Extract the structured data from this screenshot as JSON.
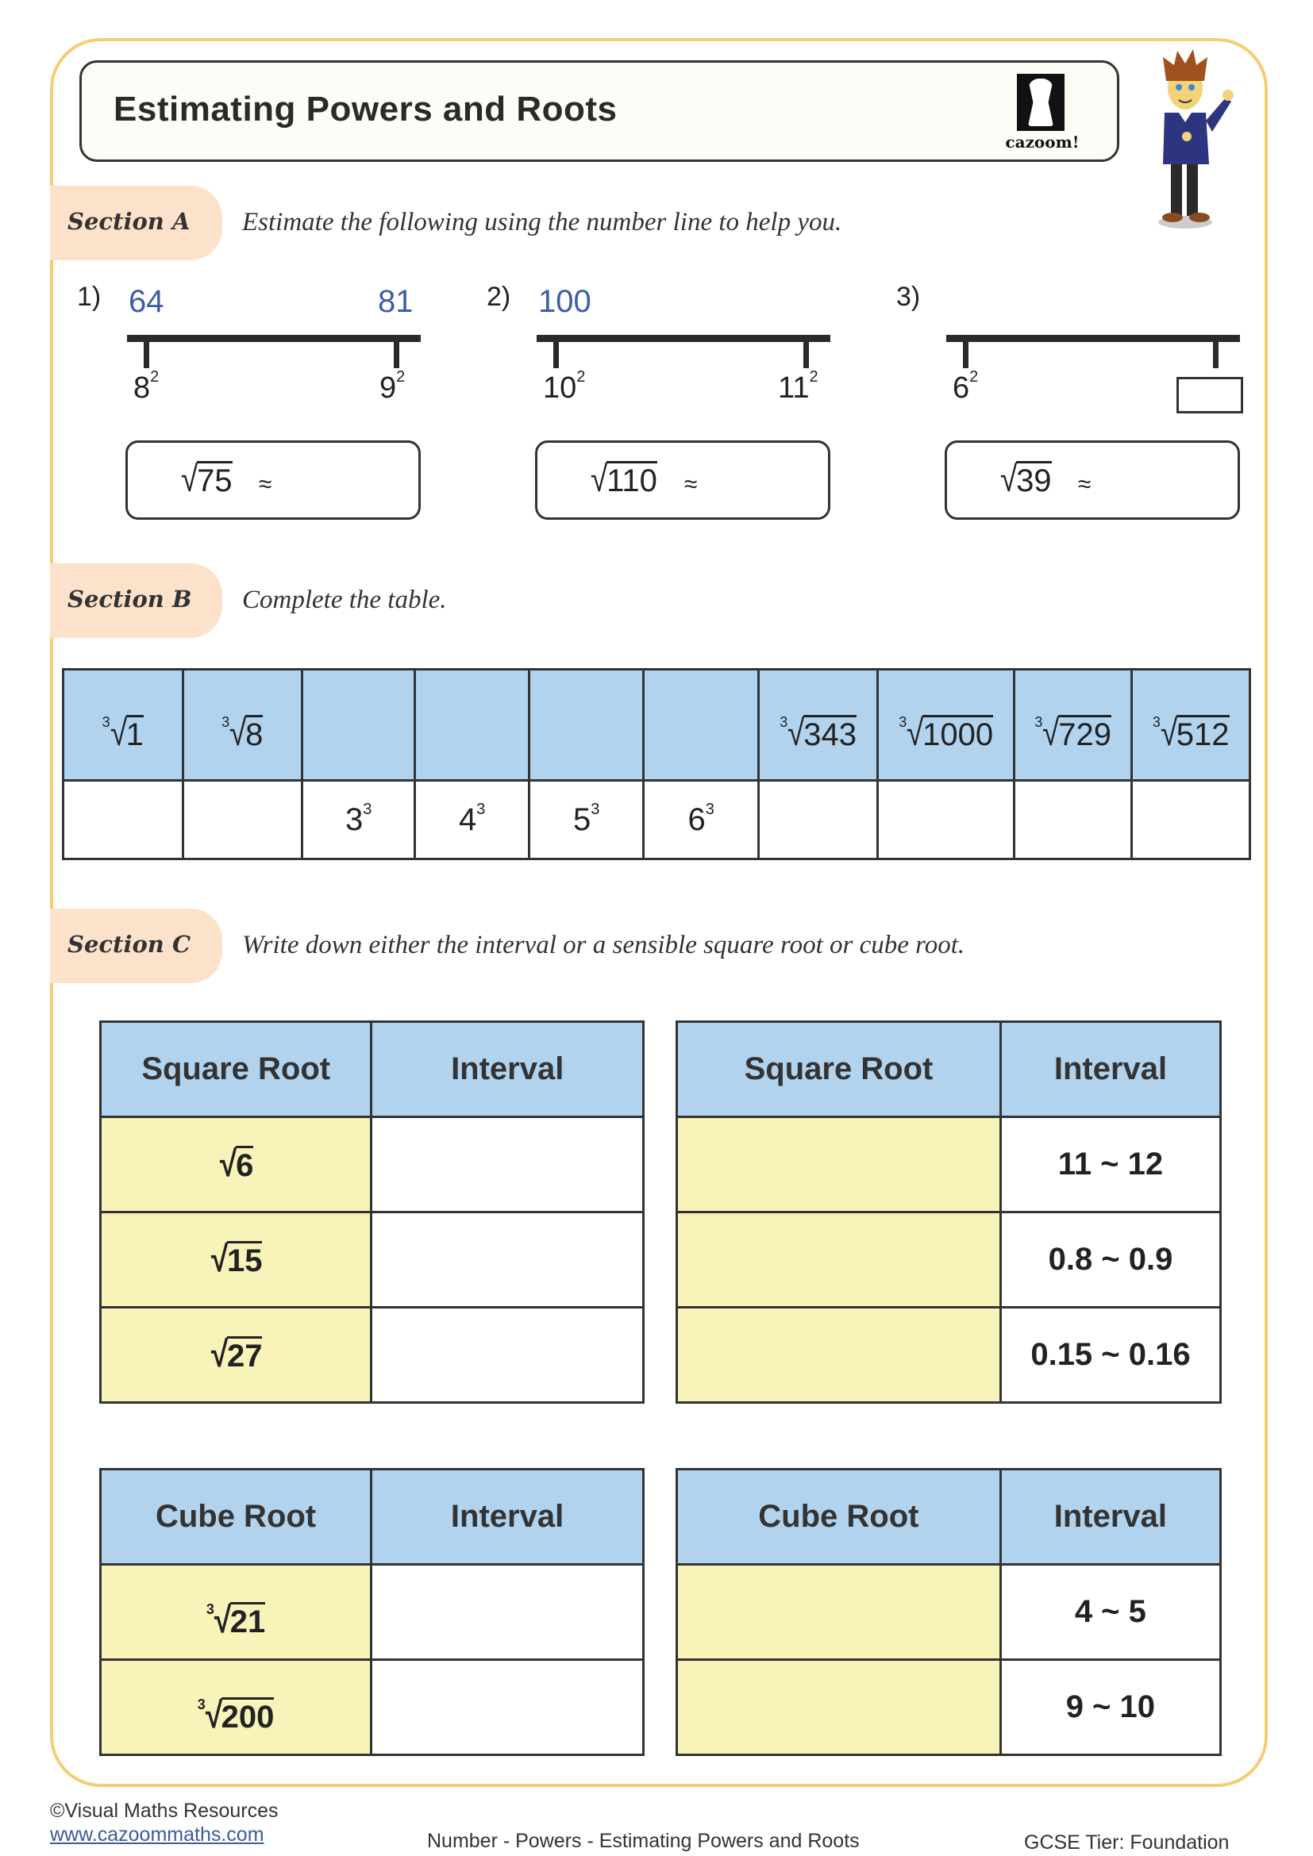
{
  "title": "Estimating Powers and Roots",
  "logo_text": "cazoom!",
  "colors": {
    "border": "#f6cc73",
    "section_pill": "#fde2cb",
    "blue_text": "#3d5ca8",
    "header_blue": "#b1d3ee",
    "cell_yellow": "#f8f3b9"
  },
  "sectionA": {
    "label": "Section A",
    "instruction": "Estimate the following using the number line to help you.",
    "approx_symbol": "≈",
    "problems": [
      {
        "number": "1)",
        "low_value": "64",
        "high_value": "81",
        "low_base": "8",
        "low_exp": "2",
        "high_base": "9",
        "high_exp": "2",
        "radicand": "75"
      },
      {
        "number": "2)",
        "low_value": "100",
        "high_value": "",
        "low_base": "10",
        "low_exp": "2",
        "high_base": "11",
        "high_exp": "2",
        "radicand": "110"
      },
      {
        "number": "3)",
        "low_value": "",
        "high_value": "",
        "low_base": "6",
        "low_exp": "2",
        "high_base": "",
        "high_exp": "",
        "radicand": "39"
      }
    ]
  },
  "sectionB": {
    "label": "Section B",
    "instruction": "Complete the table.",
    "top_row": [
      {
        "index": "3",
        "radicand": "1"
      },
      {
        "index": "3",
        "radicand": "8"
      },
      null,
      null,
      null,
      null,
      {
        "index": "3",
        "radicand": "343"
      },
      {
        "index": "3",
        "radicand": "1000"
      },
      {
        "index": "3",
        "radicand": "729"
      },
      {
        "index": "3",
        "radicand": "512"
      }
    ],
    "bottom_row": [
      null,
      null,
      {
        "base": "3",
        "exp": "3"
      },
      {
        "base": "4",
        "exp": "3"
      },
      {
        "base": "5",
        "exp": "3"
      },
      {
        "base": "6",
        "exp": "3"
      },
      null,
      null,
      null,
      null
    ]
  },
  "sectionC": {
    "label": "Section C",
    "instruction": "Write down either the interval or a sensible square root or cube root.",
    "tables": [
      {
        "headers": [
          "Square Root",
          "Interval"
        ],
        "rows": [
          [
            {
              "index": "",
              "radicand": "6"
            },
            ""
          ],
          [
            {
              "index": "",
              "radicand": "15"
            },
            ""
          ],
          [
            {
              "index": "",
              "radicand": "27"
            },
            ""
          ]
        ]
      },
      {
        "headers": [
          "Square Root",
          "Interval"
        ],
        "rows": [
          [
            null,
            "11 ~ 12"
          ],
          [
            null,
            "0.8 ~ 0.9"
          ],
          [
            null,
            "0.15 ~ 0.16"
          ]
        ]
      },
      {
        "headers": [
          "Cube Root",
          "Interval"
        ],
        "rows": [
          [
            {
              "index": "3",
              "radicand": "21"
            },
            ""
          ],
          [
            {
              "index": "3",
              "radicand": "200"
            },
            ""
          ]
        ]
      },
      {
        "headers": [
          "Cube Root",
          "Interval"
        ],
        "rows": [
          [
            null,
            "4 ~ 5"
          ],
          [
            null,
            "9 ~ 10"
          ]
        ]
      }
    ]
  },
  "footer": {
    "copyright": "©Visual Maths Resources",
    "link": "www.cazoommaths.com",
    "topic": "Number - Powers - Estimating Powers and Roots",
    "tier": "GCSE Tier: Foundation"
  }
}
